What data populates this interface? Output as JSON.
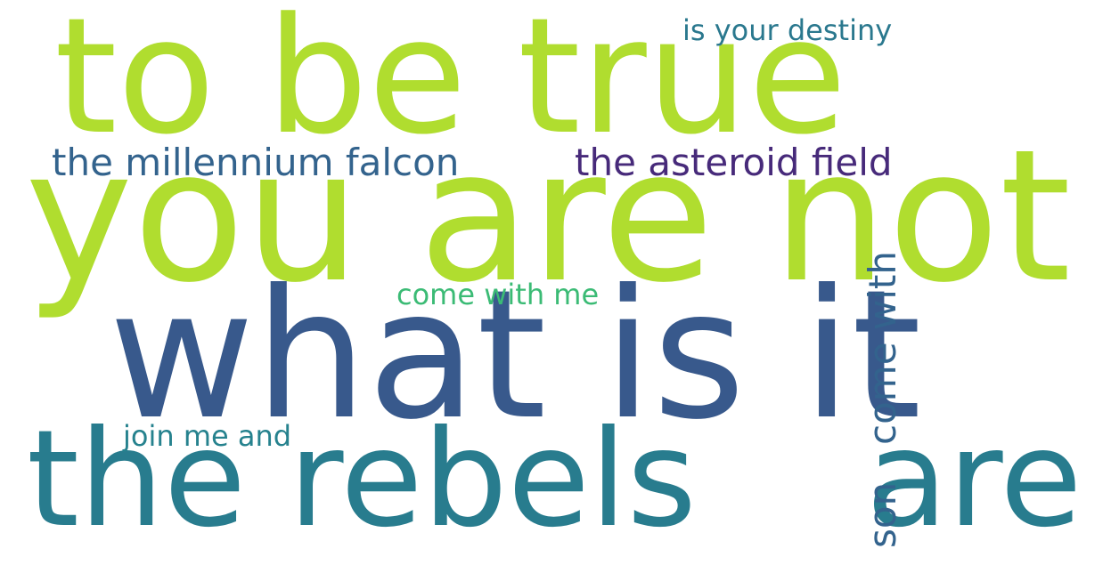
{
  "words": [
    {
      "text": "to be true",
      "color": "#b0dd2f"
    },
    {
      "text": "you are not",
      "color": "#b0dd2f"
    },
    {
      "text": "what is it",
      "color": "#38598c"
    },
    {
      "text": "the rebels",
      "color": "#287c8e"
    },
    {
      "text": "are",
      "color": "#287c8e"
    },
    {
      "text": "the millennium falcon",
      "color": "#33638d"
    },
    {
      "text": "the asteroid field",
      "color": "#472a7a"
    },
    {
      "text": "is your destiny",
      "color": "#2a788e"
    },
    {
      "text": "come with me",
      "color": "#3bbb75"
    },
    {
      "text": "join me and",
      "color": "#26828e"
    },
    {
      "text": "come with",
      "color": "#33638d"
    },
    {
      "text": "son",
      "color": "#33638d"
    }
  ]
}
